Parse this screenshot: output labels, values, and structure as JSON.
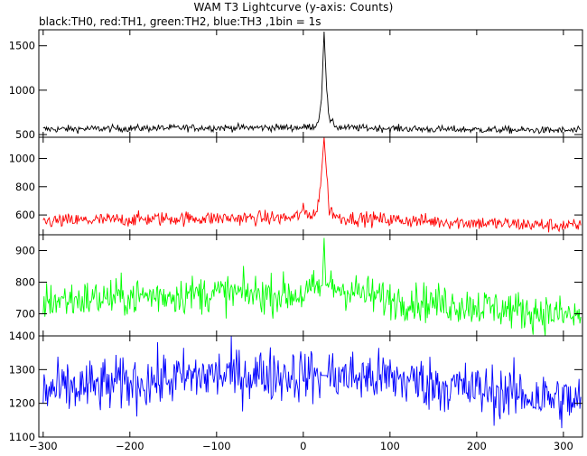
{
  "title": "WAM T3 Lightcurve (y-axis: Counts)",
  "subtitle": "black:TH0, red:TH1, green:TH2, blue:TH3 ,1bin = 1s",
  "chart_data": {
    "type": "line",
    "title": "WAM T3 Lightcurve (y-axis: Counts)",
    "subtitle": "black:TH0, red:TH1, green:TH2, blue:TH3 ,1bin = 1s",
    "xlim": [
      -305,
      322
    ],
    "x_ticks": [
      -300,
      -200,
      -100,
      0,
      100,
      200,
      300
    ],
    "x_tick_labels": [
      "−300",
      "−200",
      "−100",
      "0",
      "100",
      "200",
      "300"
    ],
    "bin_size": "1s",
    "panels": [
      {
        "series_label": "TH0",
        "color": "#000000",
        "ylim": [
          470,
          1680
        ],
        "y_ticks": [
          500,
          1000,
          1500
        ],
        "y_tick_labels": [
          "500",
          "1000",
          "1500"
        ],
        "profile": [
          [
            -300,
            560
          ],
          [
            -150,
            575
          ],
          [
            0,
            580
          ],
          [
            15,
            600
          ],
          [
            18,
            700
          ],
          [
            21,
            900
          ],
          [
            24,
            1660
          ],
          [
            27,
            1000
          ],
          [
            30,
            660
          ],
          [
            40,
            580
          ],
          [
            150,
            560
          ],
          [
            320,
            545
          ]
        ],
        "noise": 40
      },
      {
        "series_label": "TH1",
        "color": "#ff0000",
        "ylim": [
          460,
          1150
        ],
        "y_ticks": [
          600,
          800,
          1000
        ],
        "y_tick_labels": [
          "600",
          "800",
          "1000"
        ],
        "profile": [
          [
            -300,
            555
          ],
          [
            -150,
            575
          ],
          [
            -10,
            580
          ],
          [
            0,
            630
          ],
          [
            5,
            600
          ],
          [
            15,
            620
          ],
          [
            18,
            700
          ],
          [
            21,
            900
          ],
          [
            24,
            1150
          ],
          [
            27,
            880
          ],
          [
            30,
            640
          ],
          [
            40,
            580
          ],
          [
            150,
            555
          ],
          [
            320,
            520
          ]
        ],
        "noise": 50
      },
      {
        "series_label": "TH2",
        "color": "#00ff00",
        "ylim": [
          630,
          950
        ],
        "y_ticks": [
          700,
          800,
          900
        ],
        "y_tick_labels": [
          "700",
          "800",
          "900"
        ],
        "profile": [
          [
            -300,
            740
          ],
          [
            -150,
            760
          ],
          [
            -100,
            765
          ],
          [
            0,
            760
          ],
          [
            22,
            790
          ],
          [
            24,
            940
          ],
          [
            26,
            790
          ],
          [
            100,
            745
          ],
          [
            200,
            725
          ],
          [
            320,
            690
          ]
        ],
        "noise": 60
      },
      {
        "series_label": "TH3",
        "color": "#0000ff",
        "ylim": [
          1100,
          1400
        ],
        "y_ticks": [
          1100,
          1200,
          1300,
          1400
        ],
        "y_tick_labels": [
          "1100",
          "1200",
          "1300",
          "1400"
        ],
        "profile": [
          [
            -300,
            1235
          ],
          [
            -200,
            1260
          ],
          [
            -100,
            1285
          ],
          [
            0,
            1285
          ],
          [
            100,
            1275
          ],
          [
            200,
            1240
          ],
          [
            320,
            1205
          ]
        ],
        "noise": 80
      }
    ],
    "grid": false,
    "legend": "none (colour key given in subtitle)"
  }
}
